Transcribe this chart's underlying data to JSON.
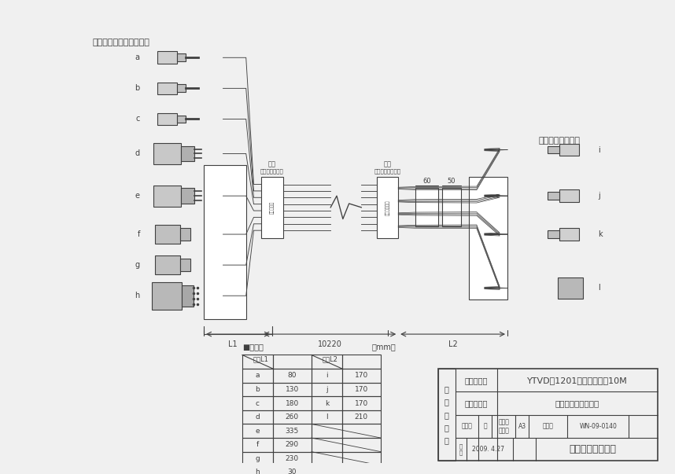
{
  "bg_color": "#f0f0f0",
  "line_color": "#404040",
  "title_text": "モニターケーブルへ接続",
  "tuner_text": "チューナーへ接続",
  "left_labels": [
    "a",
    "b",
    "c",
    "d",
    "e",
    "f",
    "g",
    "h"
  ],
  "right_labels": [
    "i",
    "j",
    "k",
    "l"
  ],
  "dimension_label": "10220",
  "L1_label": "L1",
  "L2_label": "L2",
  "tag_monitor": "タグ\n（モニター側）",
  "tag_tuner": "タグ\n（チューナー側）",
  "dim60": "60",
  "dim50": "50",
  "table_title": "■寸法表",
  "table_unit": "（mm）",
  "table_col1_header": "長さL1",
  "table_col2_header": "長さL2",
  "table_data_L1": [
    [
      "a",
      "80"
    ],
    [
      "b",
      "130"
    ],
    [
      "c",
      "180"
    ],
    [
      "d",
      "260"
    ],
    [
      "e",
      "335"
    ],
    [
      "f",
      "290"
    ],
    [
      "g",
      "230"
    ],
    [
      "h",
      "30"
    ]
  ],
  "table_data_L2": [
    [
      "i",
      "170"
    ],
    [
      "j",
      "170"
    ],
    [
      "k",
      "170"
    ],
    [
      "l",
      "210"
    ]
  ],
  "info_box": {
    "product_label": "製　品　名",
    "product_value": "YTVD－1201中継コード　10M",
    "drawing_label": "図　　　名",
    "drawing_value": "名　称　寸　法　図",
    "scale_label": "尺　度",
    "scale_value": "一",
    "size_label": "原　紙\nサイズ",
    "size_value": "A3",
    "number_label": "図　番",
    "number_value": "WN-09-0140",
    "date_label1": "作",
    "date_label2": "成",
    "date_value": "2009. 4.27",
    "company": "株式会社ノーリツ",
    "nyu_label": "納\n入\n仕\n様\n図"
  }
}
